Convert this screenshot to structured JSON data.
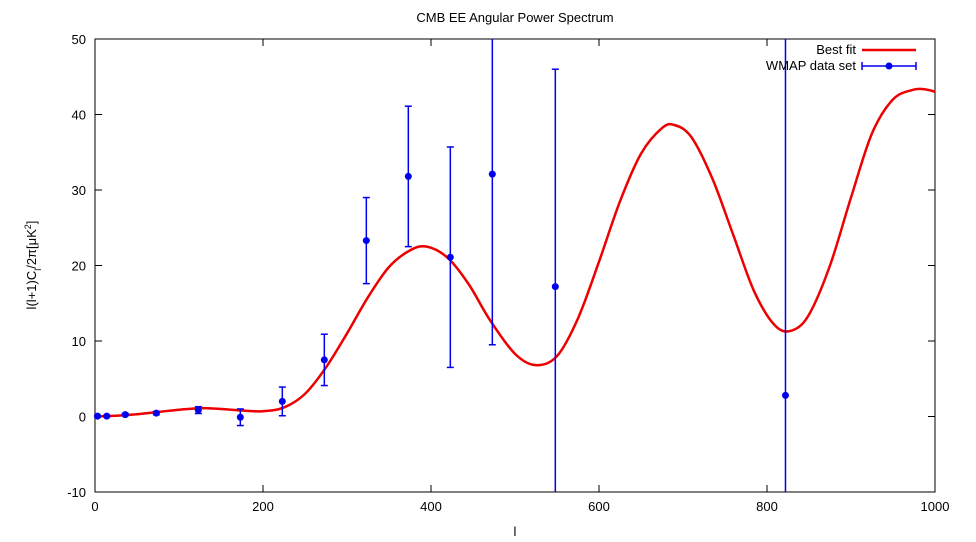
{
  "chart_data": {
    "type": "line",
    "title": "CMB EE Angular Power Spectrum",
    "xlabel": "l",
    "ylabel": "l(l+1)C",
    "ylabel_sub": "l",
    "ylabel_mid": "/2π[μK",
    "ylabel_sup": "2",
    "ylabel_end": "]",
    "xlim": [
      0,
      1000
    ],
    "ylim": [
      -10,
      50
    ],
    "x_ticks": [
      0,
      200,
      400,
      600,
      800,
      1000
    ],
    "y_ticks": [
      -10,
      0,
      10,
      20,
      30,
      40,
      50
    ],
    "legend_position": "top-right",
    "series": [
      {
        "name": "Best fit",
        "kind": "line",
        "color": "#ee0000",
        "x": [
          0,
          25,
          50,
          75,
          100,
          125,
          150,
          175,
          200,
          225,
          250,
          275,
          300,
          325,
          350,
          375,
          395,
          420,
          445,
          470,
          500,
          525,
          550,
          575,
          600,
          625,
          650,
          675,
          690,
          710,
          735,
          760,
          785,
          810,
          830,
          850,
          875,
          900,
          925,
          950,
          975,
          990,
          1000
        ],
        "y": [
          0,
          0.1,
          0.3,
          0.6,
          0.9,
          1.1,
          1.0,
          0.8,
          0.7,
          1.2,
          3.0,
          6.5,
          11.0,
          15.8,
          19.8,
          22.0,
          22.5,
          21.0,
          17.5,
          12.8,
          8.3,
          6.8,
          8.0,
          13.0,
          20.5,
          28.5,
          34.8,
          38.2,
          38.6,
          37.0,
          31.5,
          24.0,
          16.5,
          12.0,
          11.4,
          13.5,
          20.0,
          29.0,
          37.5,
          42.0,
          43.3,
          43.3,
          43.0
        ]
      },
      {
        "name": "WMAP data set",
        "kind": "errorbar",
        "color": "#0000ee",
        "points": [
          {
            "x": 3,
            "y": 0.05,
            "err": 0.1
          },
          {
            "x": 14,
            "y": 0.05,
            "err": 0.1
          },
          {
            "x": 36,
            "y": 0.25,
            "err": 0.15
          },
          {
            "x": 73,
            "y": 0.45,
            "err": 0.2
          },
          {
            "x": 123,
            "y": 0.85,
            "err": 0.45
          },
          {
            "x": 173,
            "y": -0.1,
            "err": 1.1
          },
          {
            "x": 223,
            "y": 2.0,
            "err": 1.9
          },
          {
            "x": 273,
            "y": 7.5,
            "err": 3.4
          },
          {
            "x": 323,
            "y": 23.3,
            "err": 5.7
          },
          {
            "x": 373,
            "y": 31.8,
            "err": 9.3
          },
          {
            "x": 423,
            "y": 21.1,
            "err": 14.6
          },
          {
            "x": 473,
            "y": 32.1,
            "err": 22.6
          },
          {
            "x": 548,
            "y": 17.2,
            "err": 28.8
          },
          {
            "x": 822,
            "y": 2.8,
            "err": 50.0
          }
        ]
      }
    ]
  }
}
